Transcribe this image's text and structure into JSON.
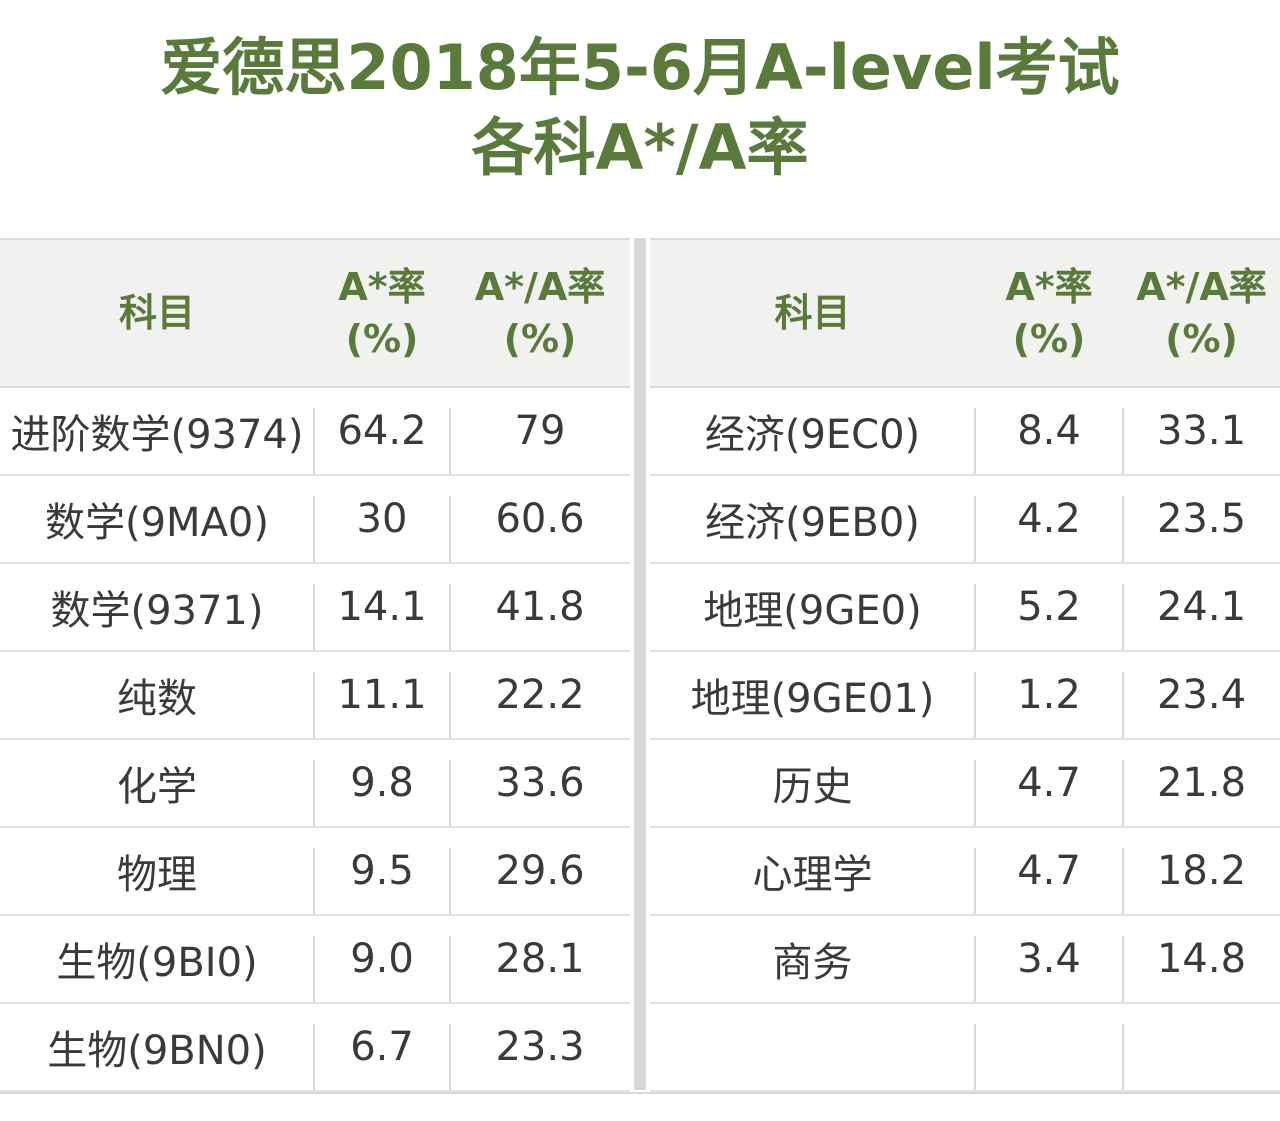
{
  "title_line1": "爱德思2018年5-6月A-level考试",
  "title_line2": "各科A*/A率",
  "header": {
    "subject": "科目",
    "astar": "A*率\n(%)",
    "astar_a": "A*/A率\n(%)"
  },
  "left_rows": [
    {
      "subject": "进阶数学(9374)",
      "astar": "64.2",
      "astar_a": "79"
    },
    {
      "subject": "数学(9MA0)",
      "astar": "30",
      "astar_a": "60.6"
    },
    {
      "subject": "数学(9371)",
      "astar": "14.1",
      "astar_a": "41.8"
    },
    {
      "subject": "纯数",
      "astar": "11.1",
      "astar_a": "22.2"
    },
    {
      "subject": "化学",
      "astar": "9.8",
      "astar_a": "33.6"
    },
    {
      "subject": "物理",
      "astar": "9.5",
      "astar_a": "29.6"
    },
    {
      "subject": "生物(9BI0)",
      "astar": "9.0",
      "astar_a": "28.1"
    },
    {
      "subject": "生物(9BN0)",
      "astar": "6.7",
      "astar_a": "23.3"
    }
  ],
  "right_rows": [
    {
      "subject": "经济(9EC0)",
      "astar": "8.4",
      "astar_a": "33.1"
    },
    {
      "subject": "经济(9EB0)",
      "astar": "4.2",
      "astar_a": "23.5"
    },
    {
      "subject": "地理(9GE0)",
      "astar": "5.2",
      "astar_a": "24.1"
    },
    {
      "subject": "地理(9GE01)",
      "astar": "1.2",
      "astar_a": "23.4"
    },
    {
      "subject": "历史",
      "astar": "4.7",
      "astar_a": "21.8"
    },
    {
      "subject": "心理学",
      "astar": "4.7",
      "astar_a": "18.2"
    },
    {
      "subject": "商务",
      "astar": "3.4",
      "astar_a": "14.8"
    },
    {
      "subject": "",
      "astar": "",
      "astar_a": ""
    }
  ]
}
